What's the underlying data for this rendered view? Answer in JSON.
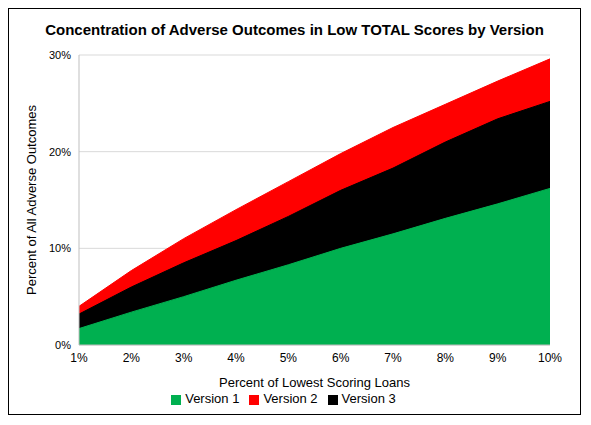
{
  "chart_data": {
    "type": "area",
    "title": "Concentration of Adverse Outcomes in Low TOTAL Scores by Version",
    "x_label": "Percent of Lowest Scoring Loans",
    "y_label": "Percent of All Adverse Outcomes",
    "categories": [
      "1%",
      "2%",
      "3%",
      "4%",
      "5%",
      "6%",
      "7%",
      "8%",
      "9%",
      "10%"
    ],
    "series": [
      {
        "name": "Version 2",
        "color": "#ff0000",
        "values": [
          4.0,
          7.7,
          11.0,
          14.0,
          16.9,
          19.8,
          22.5,
          24.9,
          27.3,
          29.6
        ]
      },
      {
        "name": "Version 3",
        "color": "#000000",
        "values": [
          3.2,
          6.0,
          8.5,
          10.8,
          13.3,
          16.0,
          18.3,
          21.0,
          23.4,
          25.2
        ]
      },
      {
        "name": "Version 1",
        "color": "#00b050",
        "values": [
          1.7,
          3.4,
          5.0,
          6.7,
          8.3,
          10.0,
          11.5,
          13.1,
          14.6,
          16.2
        ]
      }
    ],
    "ylim": [
      0,
      30
    ],
    "yticks": [
      {
        "value": 0,
        "label": "0%"
      },
      {
        "value": 10,
        "label": "10%"
      },
      {
        "value": 20,
        "label": "20%"
      },
      {
        "value": 30,
        "label": "30%"
      }
    ],
    "grid": true,
    "legend": "bottom",
    "stacked": false
  }
}
